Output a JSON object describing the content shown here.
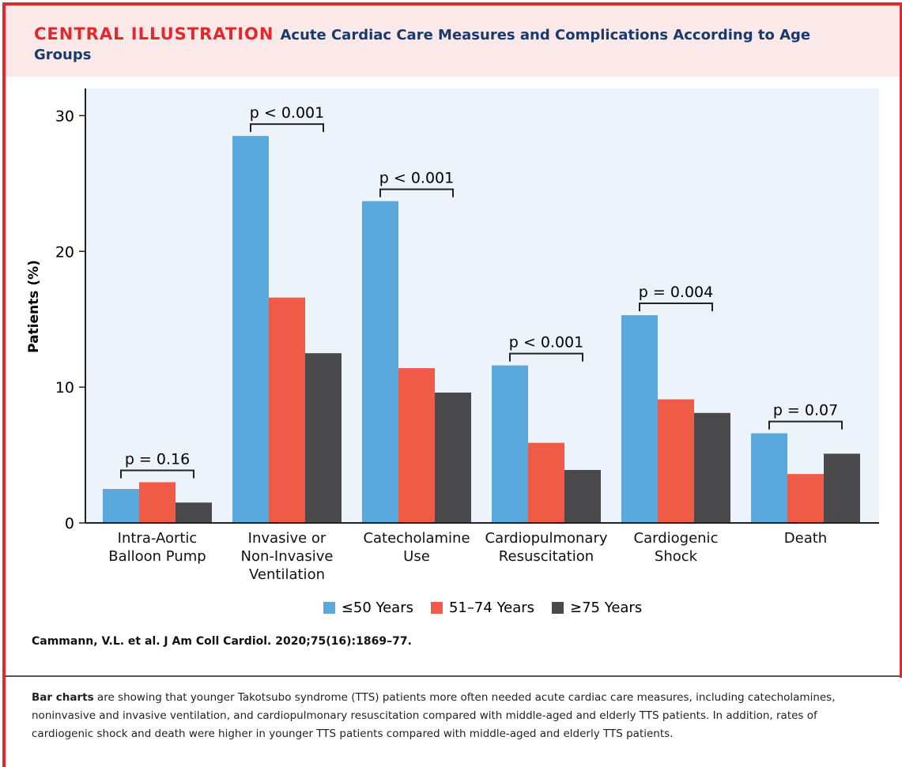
{
  "chart_data": {
    "type": "bar",
    "label": "CENTRAL ILLUSTRATION",
    "title": "Acute Cardiac Care Measures and Complications According to Age Groups",
    "y_label": "Patients (%)",
    "categories": [
      "Intra-Aortic\nBalloon Pump",
      "Invasive or\nNon-Invasive\nVentilation",
      "Catecholamine\nUse",
      "Cardiopulmonary\nResuscitation",
      "Cardiogenic\nShock",
      "Death"
    ],
    "series": [
      {
        "name": "≤50 Years",
        "color": "#5ba8dc",
        "values": [
          2.5,
          28.5,
          23.7,
          11.6,
          15.3,
          6.6
        ]
      },
      {
        "name": "51–74 Years",
        "color": "#ef5b47",
        "values": [
          3.0,
          16.6,
          11.4,
          5.9,
          9.1,
          3.6
        ]
      },
      {
        "name": "≥75 Years",
        "color": "#4a4a4c",
        "values": [
          1.5,
          12.5,
          9.6,
          3.9,
          8.1,
          5.1
        ]
      }
    ],
    "annotations": [
      "p = 0.16",
      "p < 0.001",
      "p < 0.001",
      "p < 0.001",
      "p = 0.004",
      "p = 0.07"
    ],
    "ylim": [
      0,
      32
    ],
    "yticks": [
      0,
      10,
      20,
      30
    ],
    "source": "Cammann, V.L. et al. J Am Coll Cardiol. 2020;75(16):1869–77.",
    "caption": {
      "bold": "Bar charts",
      "text": " are showing that younger Takotsubo syndrome (TTS) patients more often needed acute cardiac care measures, including catecholamines, noninvasive and invasive ventilation, and cardiopulmonary resuscitation compared with middle-aged and elderly TTS patients. In addition, rates of cardiogenic shock and death were higher in younger TTS patients compared with middle-aged and elderly TTS patients."
    }
  }
}
